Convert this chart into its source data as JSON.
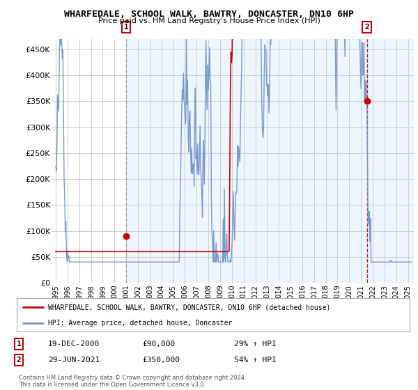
{
  "title": "WHARFEDALE, SCHOOL WALK, BAWTRY, DONCASTER, DN10 6HP",
  "subtitle": "Price paid vs. HM Land Registry's House Price Index (HPI)",
  "ylabel_ticks": [
    "£0",
    "£50K",
    "£100K",
    "£150K",
    "£200K",
    "£250K",
    "£300K",
    "£350K",
    "£400K",
    "£450K"
  ],
  "ytick_vals": [
    0,
    50000,
    100000,
    150000,
    200000,
    250000,
    300000,
    350000,
    400000,
    450000
  ],
  "ylim": [
    0,
    470000
  ],
  "xlim_start": 1994.7,
  "xlim_end": 2025.5,
  "sale1_x": 2001.0,
  "sale1_y": 90000,
  "sale1_label": "1",
  "sale2_x": 2021.5,
  "sale2_y": 350000,
  "sale2_label": "2",
  "vline1_x": 2001.0,
  "vline2_x": 2021.5,
  "legend_line1": "WHARFEDALE, SCHOOL WALK, BAWTRY, DONCASTER, DN10 6HP (detached house)",
  "legend_line2": "HPI: Average price, detached house, Doncaster",
  "table_row1": [
    "1",
    "19-DEC-2000",
    "£90,000",
    "29% ↑ HPI"
  ],
  "table_row2": [
    "2",
    "29-JUN-2021",
    "£350,000",
    "54% ↑ HPI"
  ],
  "footer": "Contains HM Land Registry data © Crown copyright and database right 2024.\nThis data is licensed under the Open Government Licence v3.0.",
  "red_color": "#cc0000",
  "blue_color": "#7799cc",
  "vline1_color": "#999999",
  "vline2_color": "#cc0000",
  "shade_color": "#ddeeff",
  "background_color": "#ffffff",
  "grid_color": "#cccccc",
  "xtick_years": [
    1995,
    1996,
    1997,
    1998,
    1999,
    2000,
    2001,
    2002,
    2003,
    2004,
    2005,
    2006,
    2007,
    2008,
    2009,
    2010,
    2011,
    2012,
    2013,
    2014,
    2015,
    2016,
    2017,
    2018,
    2019,
    2020,
    2021,
    2022,
    2023,
    2024,
    2025
  ]
}
